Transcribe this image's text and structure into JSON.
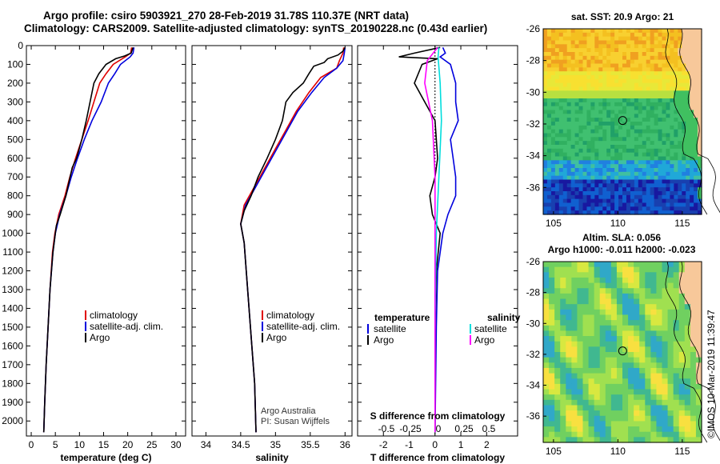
{
  "header": {
    "line1": "Argo profile: csiro 5903921_270 28-Feb-2019 31.78S 110.37E (NRT data)",
    "line2": "Climatology: CARS2009. Satellite-adjusted climatology: synTS_20190228.nc (0.43d earlier)"
  },
  "colors": {
    "climatology": "#e00000",
    "satellite": "#0000dd",
    "argo": "#000000",
    "s_satellite": "#00dddd",
    "s_argo": "#ff00ff"
  },
  "chart_data": [
    {
      "type": "line",
      "id": "temperature",
      "xlabel": "temperature (deg C)",
      "ylabel": "",
      "xlim": [
        -1,
        32
      ],
      "ylim": [
        2080,
        0
      ],
      "invert_y": true,
      "xticks": [
        0,
        5,
        10,
        15,
        20,
        25,
        30
      ],
      "yticks": [
        0,
        100,
        200,
        300,
        400,
        500,
        600,
        700,
        800,
        900,
        1000,
        1100,
        1200,
        1300,
        1400,
        1500,
        1600,
        1700,
        1800,
        1900,
        2000
      ],
      "ytick_labels": [
        "0",
        "100",
        "200",
        "300",
        "400",
        "500",
        "600",
        "700",
        "800",
        "900",
        "1000",
        "1100",
        "1200",
        "1300",
        "1400",
        "1500",
        "1600",
        "1700",
        "1800",
        "1900",
        "2000"
      ],
      "legend": [
        "climatology",
        "satellite-adj. clim.",
        "Argo"
      ],
      "series": [
        {
          "name": "climatology",
          "color": "#e00000",
          "points": [
            [
              20.8,
              10
            ],
            [
              20.6,
              40
            ],
            [
              19.5,
              60
            ],
            [
              17,
              100
            ],
            [
              15.5,
              150
            ],
            [
              14.2,
              200
            ],
            [
              13,
              300
            ],
            [
              11.8,
              400
            ],
            [
              10.5,
              500
            ],
            [
              9.2,
              600
            ],
            [
              8,
              700
            ],
            [
              7,
              800
            ],
            [
              5.7,
              900
            ],
            [
              4.9,
              1000
            ],
            [
              4.4,
              1100
            ],
            [
              3.9,
              1300
            ],
            [
              3.5,
              1500
            ],
            [
              3.1,
              1700
            ],
            [
              2.8,
              1900
            ],
            [
              2.6,
              2060
            ]
          ]
        },
        {
          "name": "satellite-adj. clim.",
          "color": "#0000dd",
          "points": [
            [
              21.3,
              10
            ],
            [
              21.1,
              40
            ],
            [
              20.5,
              60
            ],
            [
              18.5,
              100
            ],
            [
              17.3,
              150
            ],
            [
              16,
              200
            ],
            [
              14.5,
              300
            ],
            [
              12.6,
              400
            ],
            [
              11,
              500
            ],
            [
              9.6,
              600
            ],
            [
              8.3,
              700
            ],
            [
              7.2,
              800
            ],
            [
              5.9,
              900
            ],
            [
              5,
              1000
            ],
            [
              4.5,
              1100
            ],
            [
              3.9,
              1300
            ],
            [
              3.5,
              1500
            ],
            [
              3.1,
              1700
            ],
            [
              2.8,
              1900
            ],
            [
              2.6,
              2060
            ]
          ]
        },
        {
          "name": "Argo",
          "color": "#000000",
          "points": [
            [
              21.1,
              10
            ],
            [
              20.7,
              40
            ],
            [
              19.4,
              55
            ],
            [
              17.5,
              70
            ],
            [
              15.5,
              100
            ],
            [
              14,
              150
            ],
            [
              13,
              200
            ],
            [
              12.2,
              300
            ],
            [
              11.4,
              400
            ],
            [
              10.5,
              500
            ],
            [
              9.4,
              600
            ],
            [
              8.5,
              650
            ],
            [
              7.2,
              800
            ],
            [
              6,
              900
            ],
            [
              5.2,
              960
            ],
            [
              4.5,
              1100
            ],
            [
              3.9,
              1300
            ],
            [
              3.5,
              1500
            ],
            [
              3.1,
              1700
            ],
            [
              2.8,
              1900
            ],
            [
              2.6,
              2060
            ]
          ]
        }
      ]
    },
    {
      "type": "line",
      "id": "salinity",
      "xlabel": "salinity",
      "ylabel": "",
      "xlim": [
        33.8,
        36.1
      ],
      "ylim": [
        2080,
        0
      ],
      "invert_y": true,
      "xticks": [
        34,
        34.5,
        35,
        35.5,
        36
      ],
      "xtick_labels": [
        "34",
        "34.5",
        "35",
        "35.5",
        "36"
      ],
      "legend": [
        "climatology",
        "satellite-adj. clim.",
        "Argo"
      ],
      "annotations": [
        "Argo Australia",
        "PI: Susan Wijffels"
      ],
      "series": [
        {
          "name": "climatology",
          "color": "#e00000",
          "points": [
            [
              35.98,
              10
            ],
            [
              35.97,
              40
            ],
            [
              35.92,
              80
            ],
            [
              35.88,
              120
            ],
            [
              35.65,
              170
            ],
            [
              35.48,
              250
            ],
            [
              35.3,
              350
            ],
            [
              35.15,
              450
            ],
            [
              35,
              550
            ],
            [
              34.85,
              650
            ],
            [
              34.7,
              750
            ],
            [
              34.55,
              850
            ],
            [
              34.5,
              950
            ],
            [
              34.55,
              1050
            ],
            [
              34.58,
              1200
            ],
            [
              34.62,
              1400
            ],
            [
              34.66,
              1600
            ],
            [
              34.7,
              1800
            ],
            [
              34.72,
              2060
            ]
          ]
        },
        {
          "name": "satellite-adj. clim.",
          "color": "#0000dd",
          "points": [
            [
              36,
              10
            ],
            [
              35.99,
              40
            ],
            [
              35.97,
              80
            ],
            [
              35.88,
              120
            ],
            [
              35.7,
              170
            ],
            [
              35.52,
              250
            ],
            [
              35.32,
              350
            ],
            [
              35.17,
              450
            ],
            [
              35.02,
              550
            ],
            [
              34.87,
              650
            ],
            [
              34.72,
              750
            ],
            [
              34.57,
              850
            ],
            [
              34.5,
              950
            ],
            [
              34.55,
              1050
            ],
            [
              34.58,
              1200
            ],
            [
              34.62,
              1400
            ],
            [
              34.66,
              1600
            ],
            [
              34.7,
              1800
            ],
            [
              34.72,
              2060
            ]
          ]
        },
        {
          "name": "Argo",
          "color": "#000000",
          "points": [
            [
              36,
              10
            ],
            [
              35.97,
              30
            ],
            [
              35.9,
              50
            ],
            [
              35.75,
              70
            ],
            [
              35.7,
              90
            ],
            [
              35.55,
              110
            ],
            [
              35.48,
              150
            ],
            [
              35.4,
              200
            ],
            [
              35.25,
              250
            ],
            [
              35.15,
              300
            ],
            [
              35.1,
              400
            ],
            [
              35,
              500
            ],
            [
              34.88,
              600
            ],
            [
              34.75,
              700
            ],
            [
              34.65,
              800
            ],
            [
              34.55,
              880
            ],
            [
              34.5,
              950
            ],
            [
              34.55,
              1050
            ],
            [
              34.58,
              1200
            ],
            [
              34.62,
              1400
            ],
            [
              34.66,
              1600
            ],
            [
              34.7,
              1800
            ],
            [
              34.72,
              2060
            ]
          ]
        }
      ]
    },
    {
      "type": "line",
      "id": "difference",
      "xlabel": "T difference from climatology",
      "xlabel_top": "S difference from climatology",
      "xlim": [
        -3,
        3.2
      ],
      "ylim": [
        2080,
        0
      ],
      "invert_y": true,
      "xticks": [
        -2,
        -1,
        0,
        1,
        2
      ],
      "top_ticks": [
        -0.5,
        -0.25,
        0,
        0.25,
        0.5
      ],
      "top_tick_labels": [
        "-0.5",
        "-0.25",
        "0",
        "0.25",
        "0.5"
      ],
      "legend_left_title": "temperature",
      "legend_right_title": "salinity",
      "legend_left": [
        "satellite",
        "Argo"
      ],
      "legend_right": [
        "satellite",
        "Argo"
      ],
      "series": [
        {
          "name": "T satellite",
          "color": "#0000dd",
          "points": [
            [
              0.3,
              10
            ],
            [
              0.4,
              40
            ],
            [
              0.2,
              60
            ],
            [
              0.6,
              100
            ],
            [
              0.8,
              200
            ],
            [
              0.8,
              300
            ],
            [
              0.9,
              400
            ],
            [
              0.6,
              500
            ],
            [
              0.7,
              600
            ],
            [
              0.8,
              700
            ],
            [
              0.8,
              800
            ],
            [
              0.5,
              900
            ],
            [
              0.3,
              1000
            ],
            [
              0.1,
              1200
            ],
            [
              0.05,
              1500
            ],
            [
              0,
              2060
            ]
          ]
        },
        {
          "name": "T Argo",
          "color": "#000000",
          "points": [
            [
              0.2,
              10
            ],
            [
              -0.8,
              40
            ],
            [
              -1.4,
              60
            ],
            [
              0.1,
              70
            ],
            [
              -0.5,
              100
            ],
            [
              -0.8,
              200
            ],
            [
              -0.4,
              300
            ],
            [
              0,
              400
            ],
            [
              0.1,
              600
            ],
            [
              0,
              700
            ],
            [
              -0.2,
              800
            ],
            [
              -0.1,
              900
            ],
            [
              0.2,
              1000
            ],
            [
              0.05,
              1200
            ],
            [
              0,
              1500
            ],
            [
              0,
              2060
            ]
          ]
        },
        {
          "name": "S satellite",
          "color": "#00dddd",
          "points": [
            [
              0.15,
              10
            ],
            [
              0.12,
              60
            ],
            [
              0.2,
              200
            ],
            [
              0.25,
              400
            ],
            [
              0.15,
              700
            ],
            [
              0.05,
              1000
            ],
            [
              0,
              1500
            ],
            [
              0,
              2060
            ]
          ]
        },
        {
          "name": "S Argo",
          "color": "#ff00ff",
          "points": [
            [
              0.1,
              10
            ],
            [
              -0.3,
              80
            ],
            [
              -0.4,
              200
            ],
            [
              -0.1,
              400
            ],
            [
              0,
              700
            ],
            [
              0,
              1000
            ],
            [
              0,
              1500
            ],
            [
              0,
              2060
            ]
          ]
        }
      ]
    },
    {
      "type": "heatmap",
      "id": "sst-map",
      "title": "sat. SST: 20.9 Argo: 21",
      "xticks": [
        105,
        110,
        115
      ],
      "yticks": [
        -26,
        -28,
        -30,
        -32,
        -34,
        -36
      ],
      "marker": [
        110.37,
        -31.78
      ]
    },
    {
      "type": "heatmap",
      "id": "sla-map",
      "title": "Altim. SLA: 0.056",
      "subtitle": "Argo h1000: -0.011 h2000: -0.023",
      "xticks": [
        105,
        110,
        115
      ],
      "yticks": [
        -26,
        -28,
        -30,
        -32,
        -34,
        -36
      ],
      "marker": [
        110.37,
        -31.78
      ]
    }
  ],
  "credit": "©IMOS 10-Mar-2019 11:39:47"
}
